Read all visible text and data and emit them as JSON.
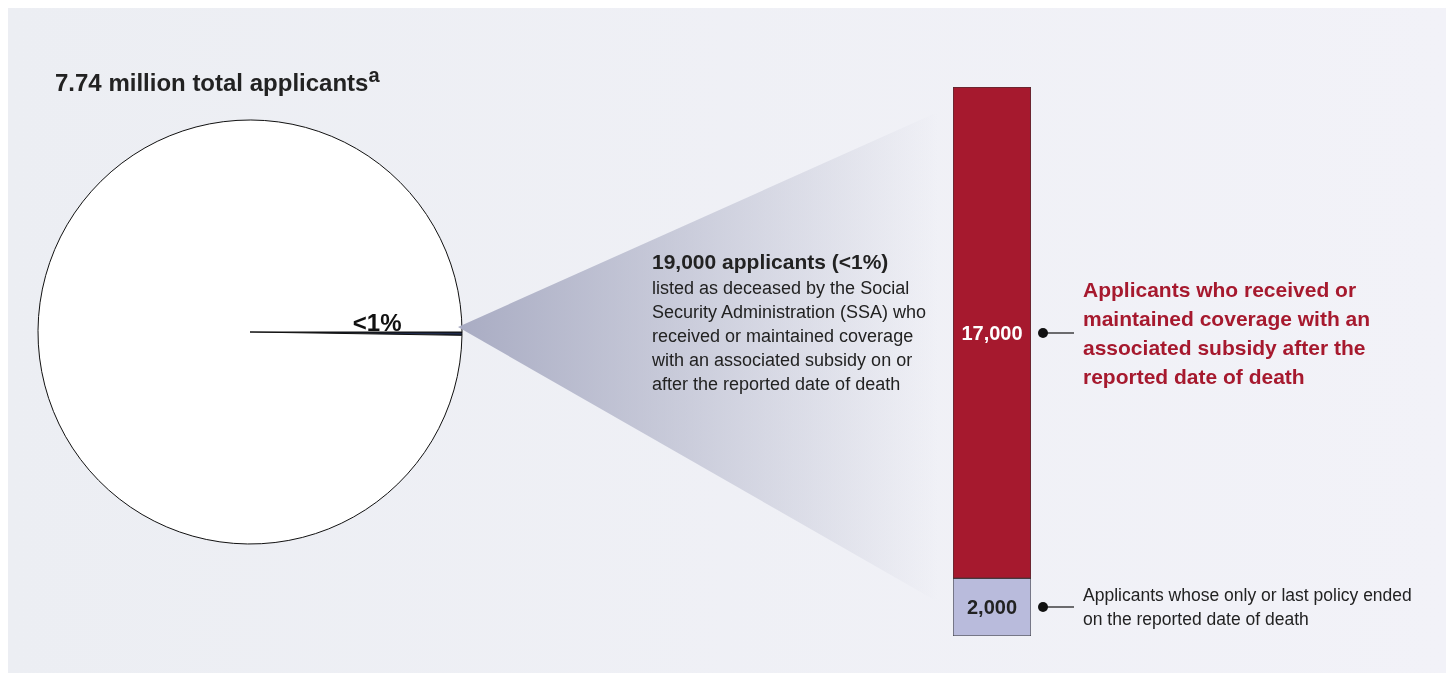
{
  "chart_data": [
    {
      "type": "pie",
      "title": "7.74 million total applicants$^{a}$",
      "categories": [
        null,
        null
      ],
      "values": [
        0.25,
        99.75
      ],
      "colors": [
        "#1f2a4a",
        "#ffffff"
      ],
      "value_labels": [
        "<1%",
        null
      ]
    },
    {
      "type": "bar",
      "stacked": true,
      "categories": [
        null
      ],
      "annotations": [
        "19,000 applicants (<1%)",
        "listed as deceased by the Social Security Administration (SSA) who received or maintained coverage with an associated subsidy on or after the reported date of death"
      ],
      "series": [
        {
          "name": "Applicants whose only or last policy ended on the reported date of death",
          "color": "#b9bbdc",
          "values": [
            2000
          ],
          "value_labels": [
            "2,000"
          ]
        },
        {
          "name": "Applicants who received or maintained coverage with an associated subsidy after the reported date of death",
          "color": "#a6192e",
          "values": [
            17000
          ],
          "value_labels": [
            "17,000"
          ]
        }
      ]
    }
  ]
}
